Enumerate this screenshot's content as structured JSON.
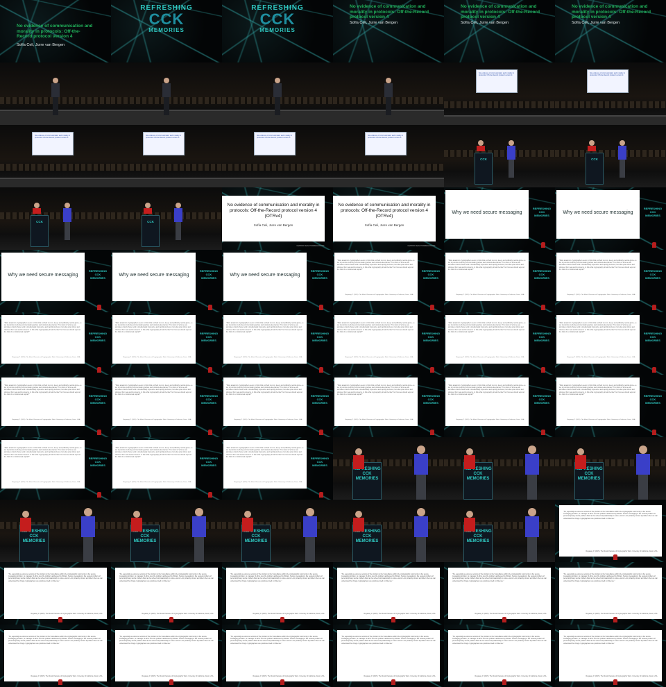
{
  "talk": {
    "event_logo_line1": "REFRESHING",
    "event_logo_line2": "CCK",
    "event_logo_line3": "MEMORIES",
    "title": "No evidence of communication and morality in protocols: Off-the-Record protocol version 4",
    "title_short": "No evidence of communication and morality in protocols: Off-the-Record protocol version 4",
    "authors": "Sofía Celi, Jurre van Bergen"
  },
  "screen_title_slide": {
    "title": "No evidence of communication and morality in protocols: Off-the-Record protocol version 4 (OTRv4)",
    "authors": "Sofía Celi, Jurre van Bergen",
    "footer": "CENTRO DE AUTONOMIA DIGITAL"
  },
  "section_slide": {
    "heading": "Why we need secure messaging"
  },
  "quote_slide": {
    "body": "\"Most academic cryptographers seem to think that our field is a fun, deep, and politically neutral game—a set of puzzles involving communicating parties and notional adversaries. This vision of who we are animates a field whose work is intellectually impressive and rapidly produced, but also quite inbred and divorced from real-world concerns. Is this what cryptography should be like? Is it how we should expend the bulk of our intellectual capital?\"",
    "reference": "Rogaway, P. (2015). The Moral Character of Cryptographic Work. University of California, Davis, USA."
  },
  "quote_slide_2": {
    "body": "\"So, especially as extreme versions of the problem is the Surveillance within the cryptographic community is the secure messaging problem, to manager of other over the problem addressed by Zittrain. Secure messaging is the nearest problem of personal privacy and a problem that can be solved computationally to some extent. Let's privately consult a problem then we can understand the things cryptographers are positioned well to influence.\"",
    "reference": "Rogaway, P. (2015). The Moral Character of Cryptographic Work. University of California, Davis, USA."
  },
  "frames": [
    "title_dark",
    "logo",
    "logo",
    "title_green",
    "title_green",
    "title_green",
    "stage_speaker",
    "stage_speaker",
    "stage_speaker",
    "stage_speaker",
    "stage_screen",
    "stage_screen",
    "stage_screen",
    "stage_screen",
    "stage_screen",
    "stage_screen",
    "podium",
    "podium",
    "podium",
    "podium",
    "screen_title",
    "screen_title",
    "why",
    "why",
    "why",
    "why",
    "why",
    "quote",
    "quote",
    "quote",
    "quote",
    "quote",
    "quote",
    "quote",
    "quote",
    "quote",
    "quote",
    "quote",
    "quote",
    "quote",
    "quote",
    "quote",
    "quote",
    "quote",
    "quote",
    "podium_close",
    "podium_close",
    "podium_close",
    "podium_close",
    "podium_close",
    "podium_close",
    "podium_close",
    "podium_close",
    "quote2",
    "quote2",
    "quote2",
    "quote2",
    "quote2",
    "quote2",
    "quote2",
    "quote2",
    "quote2",
    "quote2",
    "quote2",
    "quote2",
    "quote2"
  ]
}
